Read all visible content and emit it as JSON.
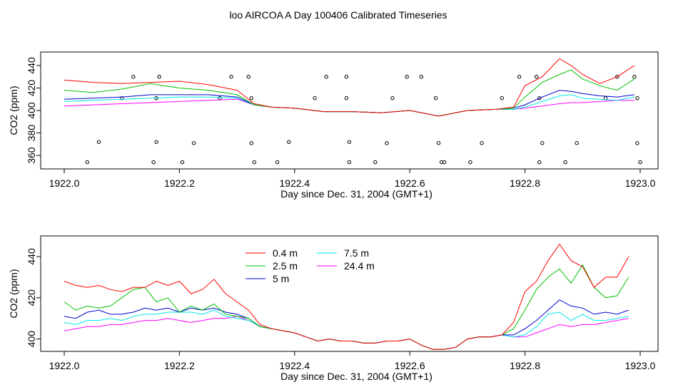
{
  "figure_title": "loo AIRCOA A  Day 100406  Calibrated Timeseries",
  "colors": {
    "0.4m": "#ff0000",
    "2.5m": "#00c000",
    "5m": "#0000d0",
    "7.5m": "#00e6e6",
    "24.4m": "#ff00ff",
    "ref": "#000000"
  },
  "chart_data": [
    {
      "type": "line",
      "title": "",
      "xlabel": "Day since Dec. 31, 2004 (GMT+1)",
      "ylabel": "CO2 (ppm)",
      "xlim": [
        1922.0,
        1923.0
      ],
      "ylim": [
        348,
        452
      ],
      "x_ticks": [
        "1922.0",
        "1922.2",
        "1922.4",
        "1922.6",
        "1922.8",
        "1923.0"
      ],
      "y_ticks": [
        "360",
        "380",
        "400",
        "420",
        "440"
      ],
      "grid": false,
      "series": [
        {
          "name": "0.4 m",
          "color_key": "0.4m",
          "kind": "line",
          "x": [
            1922.0,
            1922.05,
            1922.1,
            1922.15,
            1922.2,
            1922.25,
            1922.3,
            1922.33,
            1922.36,
            1922.4,
            1922.45,
            1922.5,
            1922.55,
            1922.6,
            1922.65,
            1922.7,
            1922.75,
            1922.78,
            1922.8,
            1922.83,
            1922.86,
            1922.88,
            1922.9,
            1922.93,
            1922.96,
            1922.99
          ],
          "y": [
            427,
            425,
            424,
            425,
            426,
            423,
            418,
            406,
            403,
            402,
            399,
            399,
            398,
            400,
            395,
            400,
            401,
            403,
            422,
            430,
            446,
            440,
            432,
            424,
            430,
            440
          ]
        },
        {
          "name": "2.5 m",
          "color_key": "2.5m",
          "kind": "line",
          "x": [
            1922.0,
            1922.05,
            1922.1,
            1922.15,
            1922.2,
            1922.25,
            1922.3,
            1922.33,
            1922.36,
            1922.4,
            1922.45,
            1922.5,
            1922.55,
            1922.6,
            1922.65,
            1922.7,
            1922.75,
            1922.78,
            1922.8,
            1922.83,
            1922.86,
            1922.88,
            1922.9,
            1922.93,
            1922.96,
            1922.99
          ],
          "y": [
            418,
            416,
            419,
            424,
            420,
            418,
            414,
            405,
            403,
            402,
            399,
            399,
            398,
            400,
            395,
            400,
            401,
            402,
            412,
            425,
            432,
            436,
            428,
            422,
            418,
            428
          ]
        },
        {
          "name": "5 m",
          "color_key": "5m",
          "kind": "line",
          "x": [
            1922.0,
            1922.05,
            1922.1,
            1922.15,
            1922.2,
            1922.25,
            1922.3,
            1922.33,
            1922.36,
            1922.4,
            1922.45,
            1922.5,
            1922.55,
            1922.6,
            1922.65,
            1922.7,
            1922.75,
            1922.78,
            1922.8,
            1922.83,
            1922.86,
            1922.88,
            1922.9,
            1922.93,
            1922.96,
            1922.99
          ],
          "y": [
            410,
            411,
            412,
            414,
            414,
            414,
            412,
            405,
            403,
            402,
            399,
            399,
            398,
            400,
            395,
            400,
            401,
            402,
            405,
            412,
            418,
            417,
            415,
            413,
            412,
            414
          ]
        },
        {
          "name": "7.5 m",
          "color_key": "7.5m",
          "kind": "line",
          "x": [
            1922.0,
            1922.05,
            1922.1,
            1922.15,
            1922.2,
            1922.25,
            1922.3,
            1922.33,
            1922.36,
            1922.4,
            1922.45,
            1922.5,
            1922.55,
            1922.6,
            1922.65,
            1922.7,
            1922.75,
            1922.78,
            1922.8,
            1922.83,
            1922.86,
            1922.88,
            1922.9,
            1922.93,
            1922.96,
            1922.99
          ],
          "y": [
            408,
            409,
            410,
            411,
            412,
            412,
            411,
            405,
            403,
            402,
            399,
            399,
            398,
            400,
            395,
            400,
            401,
            401,
            403,
            408,
            413,
            414,
            411,
            410,
            409,
            412
          ]
        },
        {
          "name": "24.4 m",
          "color_key": "24.4m",
          "kind": "line",
          "x": [
            1922.0,
            1922.05,
            1922.1,
            1922.15,
            1922.2,
            1922.25,
            1922.3,
            1922.33,
            1922.36,
            1922.4,
            1922.45,
            1922.5,
            1922.55,
            1922.6,
            1922.65,
            1922.7,
            1922.75,
            1922.78,
            1922.8,
            1922.83,
            1922.86,
            1922.88,
            1922.9,
            1922.93,
            1922.96,
            1922.99
          ],
          "y": [
            404,
            405,
            406,
            407,
            408,
            409,
            410,
            405,
            403,
            402,
            399,
            399,
            398,
            400,
            395,
            400,
            401,
            401,
            402,
            404,
            406,
            407,
            407,
            408,
            409,
            409
          ]
        },
        {
          "name": "",
          "color_key": "ref",
          "kind": "points",
          "x": [
            1922.04,
            1922.06,
            1922.1,
            1922.12,
            1922.155,
            1922.16,
            1922.16,
            1922.165,
            1922.205,
            1922.225,
            1922.27,
            1922.29,
            1922.32,
            1922.325,
            1922.325,
            1922.33,
            1922.37,
            1922.39,
            1922.435,
            1922.455,
            1922.49,
            1922.49,
            1922.495,
            1922.495,
            1922.54,
            1922.56,
            1922.57,
            1922.595,
            1922.62,
            1922.645,
            1922.65,
            1922.655,
            1922.66,
            1922.705,
            1922.725,
            1922.76,
            1922.79,
            1922.82,
            1922.825,
            1922.83,
            1922.825,
            1922.87,
            1922.89,
            1922.94,
            1922.96,
            1922.99,
            1922.995,
            1922.995,
            1923.0
          ],
          "y": [
            354,
            372,
            411,
            430,
            354,
            372,
            411,
            430,
            354,
            371,
            411,
            430,
            430,
            411,
            371,
            354,
            354,
            372,
            411,
            430,
            430,
            411,
            372,
            354,
            354,
            371,
            411,
            430,
            430,
            411,
            371,
            354,
            354,
            354,
            371,
            411,
            430,
            430,
            411,
            371,
            354,
            354,
            371,
            411,
            430,
            430,
            411,
            371,
            354
          ]
        }
      ]
    },
    {
      "type": "line",
      "title": "",
      "xlabel": "Day since Dec. 31, 2004 (GMT+1)",
      "ylabel": "CO2 (ppm)",
      "xlim": [
        1922.0,
        1923.0
      ],
      "ylim": [
        394,
        450
      ],
      "x_ticks": [
        "1922.0",
        "1922.2",
        "1922.4",
        "1922.6",
        "1922.8",
        "1923.0"
      ],
      "y_ticks": [
        "400",
        "420",
        "440"
      ],
      "grid": false,
      "legend_placement": "top-center",
      "series": [
        {
          "name": "0.4 m",
          "color_key": "0.4m",
          "x": [
            1922.0,
            1922.02,
            1922.04,
            1922.06,
            1922.08,
            1922.1,
            1922.12,
            1922.14,
            1922.16,
            1922.18,
            1922.2,
            1922.22,
            1922.24,
            1922.26,
            1922.28,
            1922.3,
            1922.32,
            1922.34,
            1922.36,
            1922.38,
            1922.4,
            1922.42,
            1922.44,
            1922.46,
            1922.48,
            1922.5,
            1922.52,
            1922.54,
            1922.56,
            1922.58,
            1922.6,
            1922.62,
            1922.64,
            1922.66,
            1922.68,
            1922.7,
            1922.72,
            1922.74,
            1922.76,
            1922.78,
            1922.8,
            1922.82,
            1922.84,
            1922.86,
            1922.88,
            1922.9,
            1922.92,
            1922.94,
            1922.96,
            1922.98
          ],
          "y": [
            428,
            426,
            425,
            426,
            424,
            423,
            425,
            425,
            428,
            426,
            428,
            422,
            424,
            429,
            422,
            418,
            414,
            407,
            405,
            404,
            403,
            401,
            399,
            400,
            399,
            399,
            398,
            398,
            399,
            399,
            400,
            397,
            395,
            395,
            396,
            400,
            401,
            401,
            402,
            408,
            423,
            428,
            438,
            446,
            438,
            435,
            425,
            430,
            430,
            440
          ]
        },
        {
          "name": "2.5 m",
          "color_key": "2.5m",
          "x": [
            1922.0,
            1922.02,
            1922.04,
            1922.06,
            1922.08,
            1922.1,
            1922.12,
            1922.14,
            1922.16,
            1922.18,
            1922.2,
            1922.22,
            1922.24,
            1922.26,
            1922.28,
            1922.3,
            1922.32,
            1922.34,
            1922.36,
            1922.38,
            1922.4,
            1922.42,
            1922.44,
            1922.46,
            1922.48,
            1922.5,
            1922.52,
            1922.54,
            1922.56,
            1922.58,
            1922.6,
            1922.62,
            1922.64,
            1922.66,
            1922.68,
            1922.7,
            1922.72,
            1922.74,
            1922.76,
            1922.78,
            1922.8,
            1922.82,
            1922.84,
            1922.86,
            1922.88,
            1922.9,
            1922.92,
            1922.94,
            1922.96,
            1922.98
          ],
          "y": [
            418,
            414,
            416,
            415,
            416,
            420,
            424,
            425,
            418,
            420,
            413,
            416,
            414,
            417,
            412,
            411,
            410,
            406,
            405,
            404,
            403,
            401,
            399,
            400,
            399,
            399,
            398,
            398,
            399,
            399,
            400,
            397,
            395,
            395,
            396,
            400,
            401,
            401,
            402,
            405,
            414,
            424,
            430,
            434,
            427,
            436,
            425,
            420,
            421,
            430
          ]
        },
        {
          "name": "5 m",
          "color_key": "5m",
          "x": [
            1922.0,
            1922.02,
            1922.04,
            1922.06,
            1922.08,
            1922.1,
            1922.12,
            1922.14,
            1922.16,
            1922.18,
            1922.2,
            1922.22,
            1922.24,
            1922.26,
            1922.28,
            1922.3,
            1922.32,
            1922.34,
            1922.36,
            1922.38,
            1922.4,
            1922.42,
            1922.44,
            1922.46,
            1922.48,
            1922.5,
            1922.52,
            1922.54,
            1922.56,
            1922.58,
            1922.6,
            1922.62,
            1922.64,
            1922.66,
            1922.68,
            1922.7,
            1922.72,
            1922.74,
            1922.76,
            1922.78,
            1922.8,
            1922.82,
            1922.84,
            1922.86,
            1922.88,
            1922.9,
            1922.92,
            1922.94,
            1922.96,
            1922.98
          ],
          "y": [
            411,
            410,
            413,
            414,
            412,
            412,
            413,
            415,
            414,
            415,
            413,
            415,
            414,
            415,
            413,
            412,
            410,
            406,
            405,
            404,
            403,
            401,
            399,
            400,
            399,
            399,
            398,
            398,
            399,
            399,
            400,
            397,
            395,
            395,
            396,
            400,
            401,
            401,
            402,
            402,
            405,
            409,
            414,
            419,
            416,
            415,
            412,
            413,
            412,
            414
          ]
        },
        {
          "name": "7.5 m",
          "color_key": "7.5m",
          "x": [
            1922.0,
            1922.02,
            1922.04,
            1922.06,
            1922.08,
            1922.1,
            1922.12,
            1922.14,
            1922.16,
            1922.18,
            1922.2,
            1922.22,
            1922.24,
            1922.26,
            1922.28,
            1922.3,
            1922.32,
            1922.34,
            1922.36,
            1922.38,
            1922.4,
            1922.42,
            1922.44,
            1922.46,
            1922.48,
            1922.5,
            1922.52,
            1922.54,
            1922.56,
            1922.58,
            1922.6,
            1922.62,
            1922.64,
            1922.66,
            1922.68,
            1922.7,
            1922.72,
            1922.74,
            1922.76,
            1922.78,
            1922.8,
            1922.82,
            1922.84,
            1922.86,
            1922.88,
            1922.9,
            1922.92,
            1922.94,
            1922.96,
            1922.98
          ],
          "y": [
            408,
            407,
            409,
            409,
            410,
            409,
            411,
            412,
            412,
            413,
            413,
            413,
            412,
            414,
            411,
            410,
            409,
            406,
            405,
            404,
            403,
            401,
            399,
            400,
            399,
            399,
            398,
            398,
            399,
            399,
            400,
            397,
            395,
            395,
            396,
            400,
            401,
            401,
            402,
            401,
            402,
            406,
            412,
            413,
            409,
            412,
            409,
            409,
            410,
            411
          ]
        },
        {
          "name": "24.4 m",
          "color_key": "24.4m",
          "x": [
            1922.0,
            1922.02,
            1922.04,
            1922.06,
            1922.08,
            1922.1,
            1922.12,
            1922.14,
            1922.16,
            1922.18,
            1922.2,
            1922.22,
            1922.24,
            1922.26,
            1922.28,
            1922.3,
            1922.32,
            1922.34,
            1922.36,
            1922.38,
            1922.4,
            1922.42,
            1922.44,
            1922.46,
            1922.48,
            1922.5,
            1922.52,
            1922.54,
            1922.56,
            1922.58,
            1922.6,
            1922.62,
            1922.64,
            1922.66,
            1922.68,
            1922.7,
            1922.72,
            1922.74,
            1922.76,
            1922.78,
            1922.8,
            1922.82,
            1922.84,
            1922.86,
            1922.88,
            1922.9,
            1922.92,
            1922.94,
            1922.96,
            1922.98
          ],
          "y": [
            404,
            405,
            406,
            406,
            407,
            407,
            408,
            409,
            409,
            410,
            409,
            408,
            409,
            410,
            410,
            411,
            409,
            406,
            405,
            404,
            403,
            401,
            399,
            400,
            399,
            399,
            398,
            398,
            399,
            399,
            400,
            397,
            395,
            395,
            396,
            400,
            401,
            401,
            402,
            401,
            401,
            403,
            405,
            407,
            406,
            407,
            407,
            408,
            409,
            410
          ]
        }
      ]
    }
  ]
}
